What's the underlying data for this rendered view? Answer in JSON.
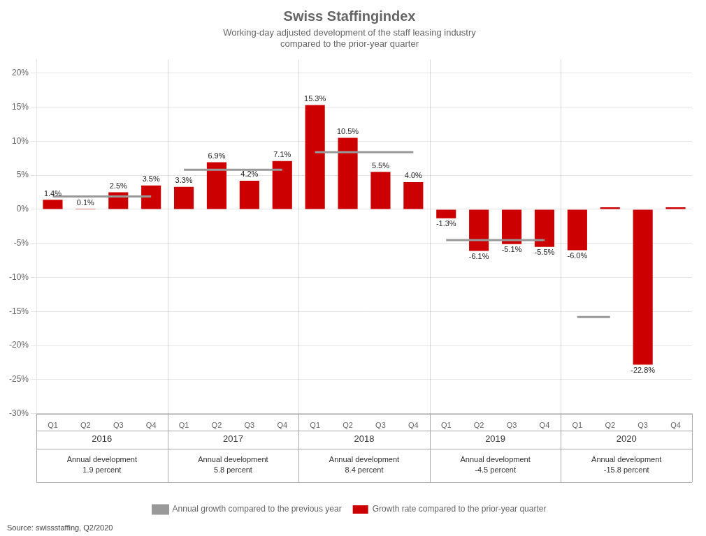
{
  "chart_data": {
    "type": "bar",
    "title": "Swiss Staffingindex",
    "subtitle": "Working-day adjusted development of the staff leasing industry\ncompared to the prior-year quarter",
    "categories": [
      "Q1",
      "Q2",
      "Q3",
      "Q4",
      "Q1",
      "Q2",
      "Q3",
      "Q4",
      "Q1",
      "Q2",
      "Q3",
      "Q4",
      "Q1",
      "Q2",
      "Q3",
      "Q4",
      "Q1",
      "Q2",
      "Q3",
      "Q4"
    ],
    "category_years": [
      "2016",
      "2016",
      "2016",
      "2016",
      "2017",
      "2017",
      "2017",
      "2017",
      "2018",
      "2018",
      "2018",
      "2018",
      "2019",
      "2019",
      "2019",
      "2019",
      "2020",
      "2020",
      "2020",
      "2020"
    ],
    "year_annotations": [
      "Annual development\n1.9 percent",
      "Annual development\n5.8 percent",
      "Annual development\n8.4 percent",
      "Annual development\n-4.5 percent",
      "Annual development\n-15.8 percent"
    ],
    "series": [
      {
        "name": "Growth rate compared to the prior-year quarter",
        "type": "bar",
        "color": "#cc0000",
        "values": [
          1.4,
          0.1,
          2.5,
          3.5,
          3.3,
          6.9,
          4.2,
          7.1,
          15.3,
          10.5,
          5.5,
          4.0,
          -1.3,
          -6.1,
          -5.1,
          -5.5,
          -6.0,
          0.3,
          -22.8,
          0.3
        ],
        "value_labels": [
          "1.4%",
          "0.1%",
          "2.5%",
          "3.5%",
          "3.3%",
          "6.9%",
          "4.2%",
          "7.1%",
          "15.3%",
          "10.5%",
          "5.5%",
          "4.0%",
          "-1.3%",
          "-6.1%",
          "-5.1%",
          "-5.5%",
          "-6.0%",
          null,
          "-22.8%",
          null
        ]
      },
      {
        "name": "Annual growth compared to the previous year",
        "type": "line",
        "color": "#999999",
        "values": [
          1.9,
          1.9,
          1.9,
          1.9,
          5.8,
          5.8,
          5.8,
          5.8,
          8.4,
          8.4,
          8.4,
          8.4,
          -4.5,
          -4.5,
          -4.5,
          -4.5,
          -15.8,
          -15.8,
          null,
          null
        ]
      }
    ],
    "ylim": [
      -30,
      22
    ],
    "yticks": [
      {
        "value": -30,
        "label": "-30%"
      },
      {
        "value": -25,
        "label": "-25%"
      },
      {
        "value": -20,
        "label": "-20%"
      },
      {
        "value": -15,
        "label": "-15%"
      },
      {
        "value": -10,
        "label": "-10%"
      },
      {
        "value": -5,
        "label": "-5%"
      },
      {
        "value": 0,
        "label": "0%"
      },
      {
        "value": 5,
        "label": "5%"
      },
      {
        "value": 10,
        "label": "10%"
      },
      {
        "value": 15,
        "label": "15%"
      },
      {
        "value": 20,
        "label": "20%"
      }
    ],
    "grid": true,
    "legend": "bottom",
    "data_labels": true,
    "source": "Source: swissstaffing, Q2/2020"
  }
}
